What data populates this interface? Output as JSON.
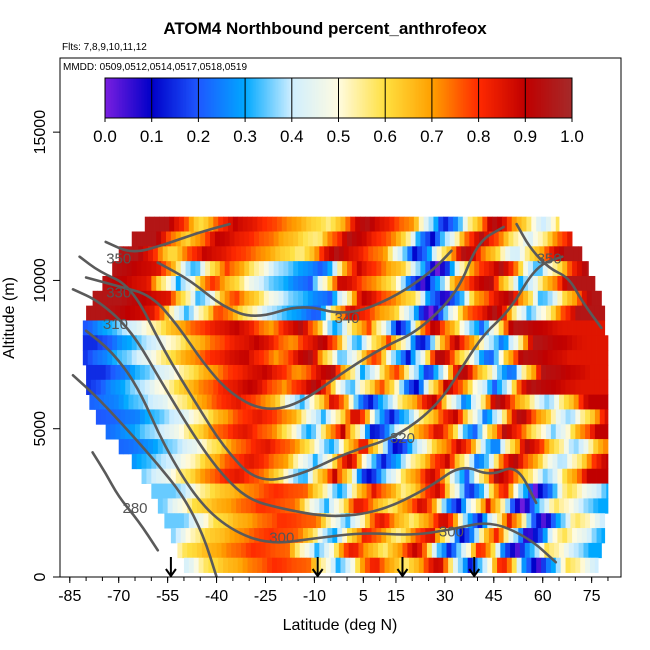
{
  "title": "ATOM4 Northbound percent_anthrofeox",
  "flights_label": "Flts: 7,8,9,10,11,12",
  "dates_label": "MMDD: 0509,0512,0514,0517,0518,0519",
  "chart_data": {
    "type": "heatmap",
    "xlabel": "Latitude (deg N)",
    "ylabel": "Altitude (m)",
    "xlim": [
      -88,
      84
    ],
    "ylim": [
      0,
      17500
    ],
    "x_ticks": [
      -85,
      -70,
      -55,
      -40,
      -25,
      -10,
      5,
      15,
      30,
      45,
      60,
      75
    ],
    "y_ticks": [
      0,
      5000,
      10000,
      15000
    ],
    "grid": false,
    "colorbar": {
      "position": "top-inside",
      "range": [
        0,
        1
      ],
      "ticks": [
        "0.0",
        "0.1",
        "0.2",
        "0.3",
        "0.4",
        "0.5",
        "0.6",
        "0.7",
        "0.8",
        "0.9",
        "1.0"
      ],
      "colors": [
        "#7a1ee0",
        "#0000c8",
        "#1e58ff",
        "#00a8ff",
        "#cfeeff",
        "#fffbe0",
        "#ffe040",
        "#ffa000",
        "#ff2a00",
        "#c00000",
        "#a52a2a"
      ]
    },
    "contour_labels": [
      {
        "value": "350",
        "lat": -70,
        "alt": 10700
      },
      {
        "value": "330",
        "lat": -70,
        "alt": 9550
      },
      {
        "value": "310",
        "lat": -71,
        "alt": 8500
      },
      {
        "value": "340",
        "lat": 0,
        "alt": 8700
      },
      {
        "value": "320",
        "lat": 17,
        "alt": 4650
      },
      {
        "value": "300",
        "lat": -20,
        "alt": 1300
      },
      {
        "value": "300",
        "lat": 32,
        "alt": 1500
      },
      {
        "value": "280",
        "lat": -65,
        "alt": 2300
      },
      {
        "value": "350",
        "lat": 62,
        "alt": 10700
      }
    ],
    "sounding_markers_lat": [
      -54,
      -9,
      17,
      39
    ],
    "coverage": [
      {
        "alt": 11900,
        "lat_min": -62,
        "lat_max": 65
      },
      {
        "alt": 11400,
        "lat_min": -66,
        "lat_max": 69
      },
      {
        "alt": 10900,
        "lat_min": -70,
        "lat_max": 72
      },
      {
        "alt": 10400,
        "lat_min": -72,
        "lat_max": 74
      },
      {
        "alt": 9900,
        "lat_min": -75,
        "lat_max": 76
      },
      {
        "alt": 9400,
        "lat_min": -78,
        "lat_max": 78
      },
      {
        "alt": 8900,
        "lat_min": -80,
        "lat_max": 79
      },
      {
        "alt": 8400,
        "lat_min": -81,
        "lat_max": 79
      },
      {
        "alt": 7900,
        "lat_min": -81,
        "lat_max": 80
      },
      {
        "alt": 7400,
        "lat_min": -81,
        "lat_max": 80
      },
      {
        "alt": 6900,
        "lat_min": -80,
        "lat_max": 80
      },
      {
        "alt": 6400,
        "lat_min": -80,
        "lat_max": 80
      },
      {
        "alt": 5900,
        "lat_min": -79,
        "lat_max": 80
      },
      {
        "alt": 5400,
        "lat_min": -77,
        "lat_max": 80
      },
      {
        "alt": 4900,
        "lat_min": -74,
        "lat_max": 80
      },
      {
        "alt": 4400,
        "lat_min": -70,
        "lat_max": 80
      },
      {
        "alt": 3900,
        "lat_min": -66,
        "lat_max": 80
      },
      {
        "alt": 3400,
        "lat_min": -63,
        "lat_max": 80
      },
      {
        "alt": 2900,
        "lat_min": -60,
        "lat_max": 80
      },
      {
        "alt": 2400,
        "lat_min": -58,
        "lat_max": 80
      },
      {
        "alt": 1900,
        "lat_min": -56,
        "lat_max": 79
      },
      {
        "alt": 1400,
        "lat_min": -54,
        "lat_max": 79
      },
      {
        "alt": 900,
        "lat_min": -52,
        "lat_max": 78
      },
      {
        "alt": 400,
        "lat_min": -50,
        "lat_max": 77
      }
    ],
    "band_profiles": [
      {
        "alt_min": 10500,
        "alt_max": 12200,
        "values": [
          [
            -60,
            0.95
          ],
          [
            -50,
            0.6
          ],
          [
            -40,
            0.9
          ],
          [
            -25,
            0.75
          ],
          [
            -10,
            0.55
          ],
          [
            0,
            0.95
          ],
          [
            15,
            0.7
          ],
          [
            25,
            0.1
          ],
          [
            40,
            0.95
          ],
          [
            55,
            0.4
          ],
          [
            70,
            0.95
          ]
        ]
      },
      {
        "alt_min": 8500,
        "alt_max": 10500,
        "values": [
          [
            -75,
            0.95
          ],
          [
            -60,
            0.85
          ],
          [
            -50,
            0.3
          ],
          [
            -40,
            0.8
          ],
          [
            -25,
            0.4
          ],
          [
            -10,
            0.2
          ],
          [
            0,
            0.9
          ],
          [
            15,
            0.6
          ],
          [
            25,
            0.0
          ],
          [
            35,
            0.7
          ],
          [
            45,
            0.95
          ],
          [
            55,
            0.3
          ],
          [
            70,
            0.95
          ]
        ]
      },
      {
        "alt_min": 6000,
        "alt_max": 8500,
        "values": [
          [
            -80,
            0.15
          ],
          [
            -70,
            0.3
          ],
          [
            -60,
            0.45
          ],
          [
            -50,
            0.65
          ],
          [
            -40,
            0.8
          ],
          [
            -30,
            0.9
          ],
          [
            -20,
            0.7
          ],
          [
            -10,
            0.95
          ],
          [
            0,
            0.3
          ],
          [
            10,
            0.8
          ],
          [
            20,
            0.1
          ],
          [
            30,
            0.95
          ],
          [
            45,
            0.2
          ],
          [
            55,
            0.95
          ],
          [
            70,
            0.85
          ]
        ]
      },
      {
        "alt_min": 3000,
        "alt_max": 6000,
        "values": [
          [
            -78,
            0.2
          ],
          [
            -68,
            0.25
          ],
          [
            -60,
            0.35
          ],
          [
            -52,
            0.45
          ],
          [
            -45,
            0.6
          ],
          [
            -38,
            0.75
          ],
          [
            -30,
            0.85
          ],
          [
            -20,
            0.7
          ],
          [
            -10,
            0.3
          ],
          [
            0,
            0.9
          ],
          [
            10,
            0.1
          ],
          [
            20,
            0.55
          ],
          [
            30,
            0.9
          ],
          [
            40,
            0.2
          ],
          [
            50,
            0.95
          ],
          [
            65,
            0.35
          ],
          [
            78,
            0.9
          ]
        ]
      },
      {
        "alt_min": 0,
        "alt_max": 3000,
        "values": [
          [
            -55,
            0.35
          ],
          [
            -45,
            0.6
          ],
          [
            -35,
            0.7
          ],
          [
            -25,
            0.8
          ],
          [
            -15,
            0.75
          ],
          [
            -5,
            0.3
          ],
          [
            5,
            0.85
          ],
          [
            15,
            0.55
          ],
          [
            25,
            0.9
          ],
          [
            35,
            0.1
          ],
          [
            45,
            0.85
          ],
          [
            55,
            0.0
          ],
          [
            65,
            0.6
          ],
          [
            78,
            0.3
          ]
        ]
      }
    ],
    "contours": [
      {
        "label": "280",
        "points": [
          [
            -78,
            4200
          ],
          [
            -74,
            3500
          ],
          [
            -70,
            2700
          ],
          [
            -64,
            1900
          ],
          [
            -58,
            900
          ]
        ]
      },
      {
        "label": "290",
        "points": [
          [
            -84,
            6800
          ],
          [
            -76,
            6000
          ],
          [
            -66,
            4800
          ],
          [
            -58,
            3800
          ],
          [
            -50,
            2700
          ],
          [
            -44,
            1400
          ],
          [
            -40,
            0
          ]
        ]
      },
      {
        "label": "300",
        "points": [
          [
            -80,
            8300
          ],
          [
            -72,
            7600
          ],
          [
            -64,
            6400
          ],
          [
            -56,
            4400
          ],
          [
            -46,
            2600
          ],
          [
            -36,
            1600
          ],
          [
            -24,
            1100
          ],
          [
            -10,
            1300
          ],
          [
            5,
            1500
          ],
          [
            20,
            1400
          ],
          [
            32,
            1600
          ],
          [
            44,
            1900
          ],
          [
            56,
            1300
          ],
          [
            64,
            500
          ]
        ]
      },
      {
        "label": "310",
        "points": [
          [
            -84,
            9700
          ],
          [
            -76,
            9300
          ],
          [
            -66,
            8300
          ],
          [
            -56,
            6400
          ],
          [
            -46,
            4600
          ],
          [
            -38,
            3400
          ],
          [
            -30,
            2600
          ],
          [
            -20,
            2300
          ],
          [
            -5,
            2000
          ],
          [
            10,
            2200
          ],
          [
            25,
            3000
          ],
          [
            35,
            3800
          ],
          [
            44,
            3400
          ],
          [
            52,
            3800
          ],
          [
            58,
            2500
          ]
        ]
      },
      {
        "label": "320",
        "points": [
          [
            -82,
            10800
          ],
          [
            -76,
            10300
          ],
          [
            -66,
            9800
          ],
          [
            -56,
            7600
          ],
          [
            -46,
            5800
          ],
          [
            -38,
            4400
          ],
          [
            -28,
            3200
          ],
          [
            -15,
            3400
          ],
          [
            0,
            4200
          ],
          [
            15,
            4700
          ],
          [
            28,
            5800
          ],
          [
            36,
            7200
          ],
          [
            42,
            8200
          ],
          [
            50,
            9000
          ],
          [
            58,
            10500
          ],
          [
            66,
            10800
          ]
        ]
      },
      {
        "label": "330",
        "points": [
          [
            -80,
            10100
          ],
          [
            -70,
            9800
          ],
          [
            -60,
            9500
          ],
          [
            -52,
            8500
          ],
          [
            -44,
            7200
          ],
          [
            -36,
            6200
          ],
          [
            -26,
            5600
          ],
          [
            -15,
            5800
          ],
          [
            0,
            7000
          ],
          [
            12,
            7800
          ],
          [
            22,
            8300
          ],
          [
            34,
            9600
          ],
          [
            40,
            11300
          ],
          [
            48,
            11800
          ]
        ]
      },
      {
        "label": "340",
        "points": [
          [
            -58,
            10600
          ],
          [
            -48,
            10000
          ],
          [
            -38,
            9100
          ],
          [
            -28,
            8700
          ],
          [
            -14,
            9200
          ],
          [
            0,
            8800
          ],
          [
            14,
            9400
          ],
          [
            26,
            10300
          ],
          [
            32,
            11000
          ]
        ]
      },
      {
        "label": "350",
        "points": [
          [
            -74,
            11300
          ],
          [
            -66,
            10900
          ],
          [
            -56,
            11200
          ],
          [
            -46,
            11600
          ],
          [
            -36,
            11900
          ]
        ]
      },
      {
        "label": "350",
        "points": [
          [
            52,
            11900
          ],
          [
            56,
            11100
          ],
          [
            62,
            10400
          ],
          [
            68,
            10100
          ],
          [
            72,
            9300
          ],
          [
            78,
            8400
          ]
        ]
      }
    ]
  }
}
